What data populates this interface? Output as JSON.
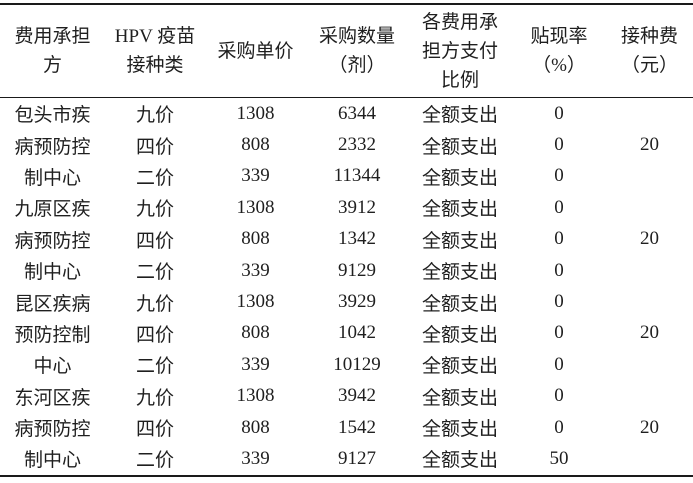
{
  "table": {
    "columns": [
      {
        "name": "cost-bearer",
        "lines": [
          "费用承担",
          "方"
        ]
      },
      {
        "name": "hpv-vaccine-type",
        "lines": [
          "HPV 疫苗",
          "接种类"
        ]
      },
      {
        "name": "unit-price",
        "lines": [
          "采购单价"
        ]
      },
      {
        "name": "purchase-quantity",
        "lines": [
          "采购数量",
          "（剂）"
        ]
      },
      {
        "name": "payment-ratio",
        "lines": [
          "各费用承",
          "担方支付",
          "比例"
        ]
      },
      {
        "name": "discount-rate",
        "lines": [
          "贴现率",
          "（%）"
        ]
      },
      {
        "name": "vaccination-fee",
        "lines": [
          "接种费",
          "（元）"
        ]
      }
    ],
    "rows": [
      [
        "包头市疾",
        "九价",
        "1308",
        "6344",
        "全额支出",
        "0",
        ""
      ],
      [
        "病预防控",
        "四价",
        "808",
        "2332",
        "全额支出",
        "0",
        "20"
      ],
      [
        "制中心",
        "二价",
        "339",
        "11344",
        "全额支出",
        "0",
        ""
      ],
      [
        "九原区疾",
        "九价",
        "1308",
        "3912",
        "全额支出",
        "0",
        ""
      ],
      [
        "病预防控",
        "四价",
        "808",
        "1342",
        "全额支出",
        "0",
        "20"
      ],
      [
        "制中心",
        "二价",
        "339",
        "9129",
        "全额支出",
        "0",
        ""
      ],
      [
        "昆区疾病",
        "九价",
        "1308",
        "3929",
        "全额支出",
        "0",
        ""
      ],
      [
        "预防控制",
        "四价",
        "808",
        "1042",
        "全额支出",
        "0",
        "20"
      ],
      [
        "中心",
        "二价",
        "339",
        "10129",
        "全额支出",
        "0",
        ""
      ],
      [
        "东河区疾",
        "九价",
        "1308",
        "3942",
        "全额支出",
        "0",
        ""
      ],
      [
        "病预防控",
        "四价",
        "808",
        "1542",
        "全额支出",
        "0",
        "20"
      ],
      [
        "制中心",
        "二价",
        "339",
        "9127",
        "全额支出",
        "50",
        ""
      ]
    ],
    "colors": {
      "border": "#1a1a1a",
      "text": "#1f1f1f",
      "background": "#ffffff"
    }
  }
}
